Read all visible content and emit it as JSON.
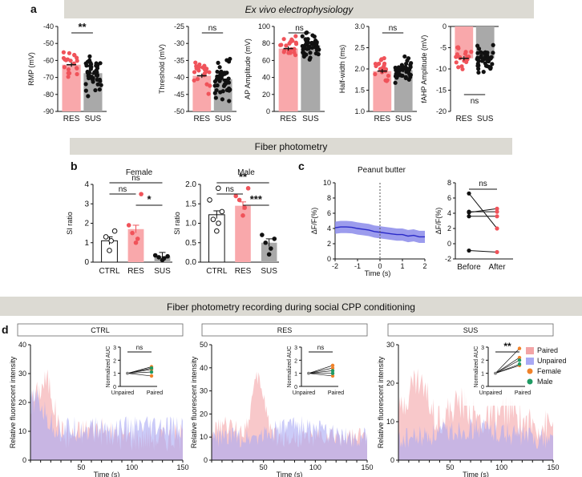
{
  "colors": {
    "res": "#f0535a",
    "res_fill": "#f9a8ab",
    "sus": "#111111",
    "sus_fill": "#a9a9a9",
    "banner": "#dcdad3",
    "paired": "#f3a4a6",
    "unpaired": "#a9a9f4",
    "female": "#f0822a",
    "male": "#1f9a63",
    "trace": "#2a2ac8",
    "trace_band": "#8b8bea"
  },
  "labels": {
    "panel_a": "a",
    "panel_b": "b",
    "panel_c": "c",
    "panel_d": "d",
    "banner_a": "Ex vivo electrophysiology",
    "banner_b": "Fiber photometry",
    "banner_d": "Fiber photometry recording during social CPP conditioning"
  },
  "chart_data": [
    {
      "id": "a1",
      "type": "bar",
      "title": "",
      "ylabel": "RMP (mV)",
      "ylim": [
        -90,
        -40
      ],
      "yticks": [
        -90,
        -80,
        -70,
        -60,
        -50,
        -40
      ],
      "categories": [
        "RES",
        "SUS"
      ],
      "values": [
        -62.5,
        -67.5
      ],
      "sig": [
        {
          "from": 0,
          "to": 1,
          "label": "**"
        }
      ]
    },
    {
      "id": "a2",
      "type": "bar",
      "title": "",
      "ylabel": "Threshold (mV)",
      "ylim": [
        -50,
        -25
      ],
      "yticks": [
        -50,
        -45,
        -40,
        -35,
        -30,
        -25
      ],
      "categories": [
        "RES",
        "SUS"
      ],
      "values": [
        -39.5,
        -40.5
      ],
      "sig": [
        {
          "from": 0,
          "to": 1,
          "label": "ns"
        }
      ]
    },
    {
      "id": "a3",
      "type": "bar",
      "title": "",
      "ylabel": "AP Amplitude (mV)",
      "ylim": [
        0,
        100
      ],
      "yticks": [
        0,
        20,
        40,
        60,
        80,
        100
      ],
      "categories": [
        "RES",
        "SUS"
      ],
      "values": [
        74,
        78
      ],
      "sig": [
        {
          "from": 0,
          "to": 1,
          "label": "ns"
        }
      ]
    },
    {
      "id": "a4",
      "type": "bar",
      "title": "",
      "ylabel": "Half-width (ms)",
      "ylim": [
        1.0,
        3.0
      ],
      "yticks": [
        1.0,
        1.5,
        2.0,
        2.5,
        3.0
      ],
      "categories": [
        "RES",
        "SUS"
      ],
      "values": [
        1.95,
        1.97
      ],
      "sig": [
        {
          "from": 0,
          "to": 1,
          "label": "ns"
        }
      ]
    },
    {
      "id": "a5",
      "type": "bar",
      "title": "",
      "ylabel": "fAHP Amplitude (mV)",
      "ylim": [
        -20,
        0
      ],
      "yticks": [
        -20,
        -15,
        -10,
        -5,
        0
      ],
      "categories": [
        "RES",
        "SUS"
      ],
      "values": [
        -7.5,
        -7.5
      ],
      "sig": [
        {
          "from": 0,
          "to": 1,
          "label": "ns"
        }
      ]
    },
    {
      "id": "b1",
      "type": "bar",
      "title": "Female",
      "ylabel": "SI ratio",
      "ylim": [
        0,
        4
      ],
      "yticks": [
        0,
        1,
        2,
        3,
        4
      ],
      "categories": [
        "CTRL",
        "RES",
        "SUS"
      ],
      "values": [
        1.1,
        1.7,
        0.3
      ],
      "sig": [
        {
          "from": 0,
          "to": 2,
          "label": "ns"
        },
        {
          "from": 0,
          "to": 1,
          "label": "ns"
        },
        {
          "from": 1,
          "to": 2,
          "label": "*"
        }
      ]
    },
    {
      "id": "b2",
      "type": "bar",
      "title": "Male",
      "ylabel": "SI ratio",
      "ylim": [
        0,
        2.0
      ],
      "yticks": [
        0,
        0.5,
        1.0,
        1.5,
        2.0
      ],
      "categories": [
        "CTRL",
        "RES",
        "SUS"
      ],
      "values": [
        1.22,
        1.45,
        0.5
      ],
      "sig": [
        {
          "from": 0,
          "to": 2,
          "label": "**"
        },
        {
          "from": 0,
          "to": 1,
          "label": "ns"
        },
        {
          "from": 1,
          "to": 2,
          "label": "***"
        }
      ]
    },
    {
      "id": "c1",
      "type": "line",
      "title": "Peanut butter",
      "xlabel": "Time (s)",
      "ylabel": "ΔF/F(%)",
      "xlim": [
        -2,
        2
      ],
      "ylim": [
        0,
        10
      ],
      "xticks": [
        -2,
        -1,
        0,
        1,
        2
      ],
      "yticks": [
        0,
        2,
        4,
        6,
        8,
        10
      ],
      "x": [
        -2,
        -1.75,
        -1.5,
        -1.25,
        -1,
        -0.75,
        -0.5,
        -0.25,
        0,
        0.25,
        0.5,
        0.75,
        1,
        1.25,
        1.5,
        1.75,
        2
      ],
      "y": [
        4.1,
        4.2,
        4.2,
        4.15,
        4.0,
        3.9,
        3.8,
        3.6,
        3.5,
        3.4,
        3.3,
        3.2,
        3.2,
        3.0,
        3.1,
        2.9,
        2.9
      ],
      "sem": [
        0.8,
        0.8,
        0.8,
        0.8,
        0.8,
        0.8,
        0.8,
        0.8,
        0.8,
        0.8,
        0.8,
        0.8,
        0.8,
        0.8,
        0.8,
        0.8,
        0.8
      ]
    },
    {
      "id": "c2",
      "type": "scatter",
      "title": "",
      "ylabel": "ΔF/F(%)",
      "categories": [
        "Before",
        "After"
      ],
      "ylim": [
        -2,
        8
      ],
      "yticks": [
        -2,
        0,
        2,
        4,
        6,
        8
      ],
      "pairs": [
        [
          6.6,
          2.0
        ],
        [
          4.2,
          4.2
        ],
        [
          4.1,
          4.6
        ],
        [
          3.6,
          3.6
        ],
        [
          -0.9,
          -1.1
        ]
      ],
      "sig": [
        {
          "from": 0,
          "to": 1,
          "label": "ns"
        }
      ]
    },
    {
      "id": "d1",
      "type": "area",
      "title": "CTRL",
      "xlabel": "Time (s)",
      "ylabel": "Relative fluorescent intensity",
      "xlim": [
        0,
        150
      ],
      "ylim": [
        0,
        40
      ],
      "xticks": [
        50,
        100,
        150
      ],
      "yticks": [
        0,
        10,
        20,
        30,
        40
      ],
      "series": [
        {
          "name": "Paired"
        },
        {
          "name": "Unpaired"
        }
      ],
      "inset": {
        "ylabel": "Normalized AUC",
        "categories": [
          "Unpaired",
          "Paired"
        ],
        "ylim": [
          0,
          3
        ],
        "yticks": [
          0,
          1,
          2,
          3
        ],
        "female": [
          [
            1,
            1.5
          ],
          [
            1,
            1.3
          ],
          [
            1,
            0.8
          ]
        ],
        "male": [
          [
            1,
            1.4
          ],
          [
            1,
            1.1
          ]
        ],
        "sig_label": "ns"
      }
    },
    {
      "id": "d2",
      "type": "area",
      "title": "RES",
      "xlabel": "Time (s)",
      "ylabel": "Relative fluorescent intensity",
      "xlim": [
        0,
        150
      ],
      "ylim": [
        0,
        50
      ],
      "xticks": [
        50,
        100,
        150
      ],
      "yticks": [
        0,
        10,
        20,
        30,
        40,
        50
      ],
      "series": [
        {
          "name": "Paired"
        },
        {
          "name": "Unpaired"
        }
      ],
      "inset": {
        "ylabel": "Normalized AUC",
        "categories": [
          "Unpaired",
          "Paired"
        ],
        "ylim": [
          0,
          3
        ],
        "yticks": [
          0,
          1,
          2,
          3
        ],
        "female": [
          [
            1,
            1.6
          ],
          [
            1,
            1.4
          ],
          [
            1,
            0.8
          ]
        ],
        "male": [
          [
            1,
            1.2
          ],
          [
            1,
            1.0
          ]
        ],
        "sig_label": "ns"
      }
    },
    {
      "id": "d3",
      "type": "area",
      "title": "SUS",
      "xlabel": "Time (s)",
      "ylabel": "Relative fluorescent intensity",
      "xlim": [
        0,
        150
      ],
      "ylim": [
        0,
        30
      ],
      "xticks": [
        50,
        100,
        150
      ],
      "yticks": [
        0,
        10,
        20,
        30
      ],
      "series": [
        {
          "name": "Paired"
        },
        {
          "name": "Unpaired"
        }
      ],
      "inset": {
        "ylabel": "Normalized AUC",
        "categories": [
          "Unpaired",
          "Paired"
        ],
        "ylim": [
          0,
          3
        ],
        "yticks": [
          0,
          1,
          2,
          3
        ],
        "female": [
          [
            1,
            2.9
          ],
          [
            1,
            2.2
          ],
          [
            1,
            1.6
          ]
        ],
        "male": [
          [
            1,
            2.0
          ],
          [
            1,
            1.7
          ]
        ],
        "sig_label": "**"
      },
      "legend": [
        "Paired",
        "Unpaired",
        "Female",
        "Male"
      ]
    }
  ]
}
